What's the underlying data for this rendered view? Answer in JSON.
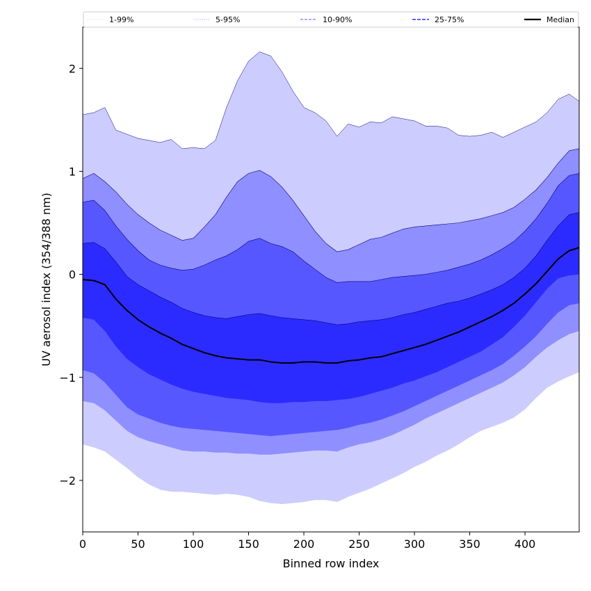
{
  "chart_data": {
    "type": "area",
    "title": "",
    "xlabel": "Binned row index",
    "ylabel": "UV aerosol index (354/388 nm)",
    "xlim": [
      0,
      449
    ],
    "ylim": [
      -2.5,
      2.4
    ],
    "xticks": [
      0,
      50,
      100,
      150,
      200,
      250,
      300,
      350,
      400
    ],
    "yticks": [
      -2,
      -1,
      0,
      1,
      2
    ],
    "grid": false,
    "legend_position": "top",
    "colors": {
      "band_1_99": "#ccccff",
      "band_5_95": "#8f8fff",
      "band_10_90": "#5757ff",
      "band_25_75": "#2b2bff",
      "median": "#000000",
      "band_edge": "#000080"
    },
    "x": [
      0,
      10,
      20,
      30,
      40,
      50,
      60,
      70,
      80,
      90,
      100,
      110,
      120,
      130,
      140,
      150,
      160,
      170,
      180,
      190,
      200,
      210,
      220,
      230,
      240,
      250,
      260,
      270,
      280,
      290,
      300,
      310,
      320,
      330,
      340,
      350,
      360,
      370,
      380,
      390,
      400,
      410,
      420,
      430,
      440,
      449
    ],
    "series": [
      {
        "name": "1-99%",
        "upper": [
          1.55,
          1.57,
          1.62,
          1.4,
          1.36,
          1.32,
          1.3,
          1.28,
          1.31,
          1.22,
          1.23,
          1.22,
          1.3,
          1.62,
          1.88,
          2.07,
          2.16,
          2.12,
          1.97,
          1.78,
          1.62,
          1.57,
          1.49,
          1.34,
          1.46,
          1.43,
          1.48,
          1.47,
          1.53,
          1.51,
          1.49,
          1.44,
          1.44,
          1.42,
          1.35,
          1.34,
          1.35,
          1.38,
          1.33,
          1.38,
          1.43,
          1.48,
          1.57,
          1.7,
          1.75,
          1.68
        ],
        "lower": [
          -1.65,
          -1.68,
          -1.72,
          -1.8,
          -1.88,
          -1.97,
          -2.04,
          -2.09,
          -2.11,
          -2.11,
          -2.12,
          -2.13,
          -2.14,
          -2.13,
          -2.14,
          -2.16,
          -2.2,
          -2.22,
          -2.23,
          -2.22,
          -2.21,
          -2.19,
          -2.19,
          -2.21,
          -2.16,
          -2.12,
          -2.08,
          -2.03,
          -1.98,
          -1.93,
          -1.87,
          -1.82,
          -1.76,
          -1.71,
          -1.65,
          -1.58,
          -1.52,
          -1.48,
          -1.44,
          -1.39,
          -1.31,
          -1.2,
          -1.1,
          -1.04,
          -0.99,
          -0.95
        ]
      },
      {
        "name": "5-95%",
        "upper": [
          0.93,
          0.98,
          0.9,
          0.8,
          0.68,
          0.58,
          0.5,
          0.43,
          0.38,
          0.33,
          0.35,
          0.46,
          0.58,
          0.75,
          0.9,
          0.98,
          1.01,
          0.95,
          0.85,
          0.72,
          0.57,
          0.42,
          0.3,
          0.22,
          0.24,
          0.29,
          0.34,
          0.36,
          0.4,
          0.44,
          0.46,
          0.47,
          0.48,
          0.49,
          0.5,
          0.52,
          0.54,
          0.57,
          0.6,
          0.65,
          0.73,
          0.82,
          0.94,
          1.08,
          1.2,
          1.22
        ],
        "lower": [
          -1.23,
          -1.25,
          -1.32,
          -1.42,
          -1.52,
          -1.58,
          -1.62,
          -1.65,
          -1.68,
          -1.71,
          -1.72,
          -1.72,
          -1.73,
          -1.73,
          -1.74,
          -1.74,
          -1.75,
          -1.75,
          -1.74,
          -1.73,
          -1.72,
          -1.71,
          -1.71,
          -1.72,
          -1.68,
          -1.65,
          -1.63,
          -1.6,
          -1.56,
          -1.51,
          -1.46,
          -1.4,
          -1.35,
          -1.3,
          -1.25,
          -1.2,
          -1.15,
          -1.1,
          -1.05,
          -0.98,
          -0.9,
          -0.8,
          -0.71,
          -0.64,
          -0.58,
          -0.55
        ]
      },
      {
        "name": "10-90%",
        "upper": [
          0.7,
          0.72,
          0.62,
          0.47,
          0.34,
          0.23,
          0.14,
          0.09,
          0.06,
          0.04,
          0.05,
          0.09,
          0.14,
          0.18,
          0.24,
          0.32,
          0.35,
          0.3,
          0.27,
          0.22,
          0.13,
          0.05,
          -0.03,
          -0.08,
          -0.07,
          -0.07,
          -0.07,
          -0.05,
          -0.03,
          -0.02,
          -0.01,
          0.0,
          0.02,
          0.04,
          0.07,
          0.1,
          0.14,
          0.19,
          0.25,
          0.32,
          0.42,
          0.54,
          0.69,
          0.86,
          0.96,
          0.98
        ],
        "lower": [
          -0.93,
          -0.96,
          -1.05,
          -1.17,
          -1.29,
          -1.36,
          -1.4,
          -1.44,
          -1.47,
          -1.49,
          -1.5,
          -1.51,
          -1.52,
          -1.53,
          -1.54,
          -1.55,
          -1.56,
          -1.57,
          -1.56,
          -1.55,
          -1.54,
          -1.53,
          -1.52,
          -1.51,
          -1.49,
          -1.46,
          -1.44,
          -1.41,
          -1.37,
          -1.33,
          -1.28,
          -1.23,
          -1.18,
          -1.13,
          -1.08,
          -1.03,
          -0.98,
          -0.93,
          -0.87,
          -0.79,
          -0.7,
          -0.6,
          -0.48,
          -0.37,
          -0.3,
          -0.28
        ]
      },
      {
        "name": "25-75%",
        "upper": [
          0.3,
          0.31,
          0.25,
          0.12,
          -0.02,
          -0.1,
          -0.16,
          -0.22,
          -0.27,
          -0.33,
          -0.37,
          -0.4,
          -0.42,
          -0.43,
          -0.41,
          -0.39,
          -0.38,
          -0.4,
          -0.42,
          -0.43,
          -0.44,
          -0.45,
          -0.47,
          -0.49,
          -0.48,
          -0.46,
          -0.45,
          -0.44,
          -0.42,
          -0.39,
          -0.37,
          -0.34,
          -0.31,
          -0.28,
          -0.26,
          -0.23,
          -0.19,
          -0.15,
          -0.1,
          -0.03,
          0.06,
          0.18,
          0.33,
          0.47,
          0.58,
          0.6
        ],
        "lower": [
          -0.42,
          -0.44,
          -0.55,
          -0.7,
          -0.82,
          -0.9,
          -0.97,
          -1.02,
          -1.07,
          -1.11,
          -1.14,
          -1.16,
          -1.18,
          -1.2,
          -1.21,
          -1.22,
          -1.24,
          -1.25,
          -1.25,
          -1.24,
          -1.24,
          -1.23,
          -1.23,
          -1.22,
          -1.21,
          -1.19,
          -1.16,
          -1.13,
          -1.1,
          -1.06,
          -1.03,
          -0.99,
          -0.95,
          -0.9,
          -0.85,
          -0.8,
          -0.75,
          -0.68,
          -0.61,
          -0.51,
          -0.4,
          -0.27,
          -0.14,
          -0.04,
          -0.01,
          0.0
        ]
      },
      {
        "name": "Median",
        "values": [
          -0.05,
          -0.06,
          -0.1,
          -0.24,
          -0.35,
          -0.44,
          -0.51,
          -0.57,
          -0.62,
          -0.68,
          -0.72,
          -0.76,
          -0.79,
          -0.81,
          -0.82,
          -0.83,
          -0.83,
          -0.85,
          -0.86,
          -0.86,
          -0.85,
          -0.85,
          -0.86,
          -0.86,
          -0.84,
          -0.83,
          -0.81,
          -0.8,
          -0.77,
          -0.74,
          -0.71,
          -0.68,
          -0.64,
          -0.6,
          -0.56,
          -0.51,
          -0.46,
          -0.41,
          -0.35,
          -0.28,
          -0.19,
          -0.09,
          0.03,
          0.15,
          0.23,
          0.26
        ]
      }
    ]
  }
}
